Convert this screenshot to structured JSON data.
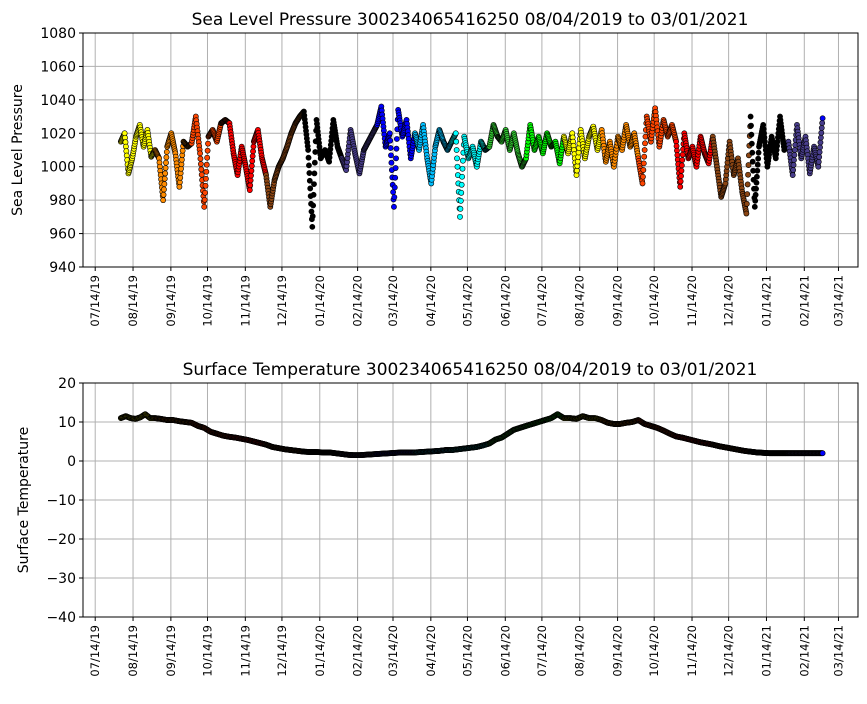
{
  "chart_data": [
    {
      "type": "scatter",
      "title": "Sea Level Pressure 300234065416250  08/04/2019 to 03/01/2021",
      "xlabel": "",
      "ylabel": "Sea Level Pressure",
      "ylim": [
        940,
        1080
      ],
      "yticks": [
        "940",
        "960",
        "980",
        "1000",
        "1020",
        "1040",
        "1060",
        "1080"
      ],
      "xlim": [
        "2019-07-04",
        "2021-03-30"
      ],
      "grid": true,
      "series_key": "slp"
    },
    {
      "type": "scatter",
      "title": "Surface Temperature 300234065416250  08/04/2019 to 03/01/2021",
      "xlabel": "",
      "ylabel": "Surface Temperature",
      "ylim": [
        -40,
        20
      ],
      "yticks": [
        "−40",
        "−30",
        "−20",
        "−10",
        "0",
        "10",
        "20"
      ],
      "xlim": [
        "2019-07-04",
        "2021-03-30"
      ],
      "grid": true,
      "series_key": "temp"
    }
  ],
  "xticks": [
    "07/14/19",
    "08/14/19",
    "09/14/19",
    "10/14/19",
    "11/14/19",
    "12/14/19",
    "01/14/20",
    "02/14/20",
    "03/14/20",
    "04/14/20",
    "05/14/20",
    "06/14/20",
    "07/14/20",
    "08/14/20",
    "09/14/20",
    "10/14/20",
    "11/14/20",
    "12/14/20",
    "01/14/21",
    "02/14/21",
    "03/14/21"
  ],
  "months": [
    {
      "month": "2019-08",
      "start_day": 4,
      "color": "#ffff00",
      "slp": [
        1015,
        1020,
        996,
        1005,
        1018,
        1025,
        1012,
        1022,
        1006
      ],
      "temp": [
        11,
        11.5,
        11,
        10.8,
        11.2,
        12,
        11
      ]
    },
    {
      "month": "2019-09",
      "color": "#ff8c00",
      "slp": [
        1010,
        1005,
        980,
        1012,
        1020,
        1008,
        988,
        1015,
        1012
      ],
      "temp": [
        11,
        10.8,
        10.5,
        10.5,
        10.2,
        10
      ]
    },
    {
      "month": "2019-10",
      "color": "#ff4500",
      "slp": [
        1014,
        1030,
        1008,
        976,
        1018,
        1022,
        1015,
        1026,
        1028
      ],
      "temp": [
        9.8,
        9,
        8.5,
        7.5,
        7,
        6.5
      ]
    },
    {
      "month": "2019-11",
      "color": "#ff0000",
      "slp": [
        1026,
        1008,
        995,
        1012,
        1000,
        986,
        1015,
        1022,
        1005
      ],
      "temp": [
        6.2,
        6,
        5.7,
        5.4,
        5,
        4.6
      ]
    },
    {
      "month": "2019-12",
      "color": "#8b4513",
      "slp": [
        995,
        976,
        992,
        1000,
        1005,
        1012,
        1020,
        1026,
        1030
      ],
      "temp": [
        4.2,
        3.6,
        3.3,
        3,
        2.8,
        2.6
      ]
    },
    {
      "month": "2020-01",
      "color": "#000000",
      "slp": [
        1033,
        1010,
        964,
        1028,
        1005,
        1010,
        1003,
        1028,
        1012
      ],
      "temp": [
        2.4,
        2.3,
        2.3,
        2.2,
        2.2,
        2
      ]
    },
    {
      "month": "2020-02",
      "color": "#483d8b",
      "slp": [
        1005,
        998,
        1022,
        1008,
        996,
        1010,
        1015,
        1020
      ],
      "temp": [
        1.8,
        1.6,
        1.5,
        1.5,
        1.6,
        1.7
      ]
    },
    {
      "month": "2020-03",
      "color": "#0000ff",
      "slp": [
        1025,
        1036,
        1012,
        1020,
        976,
        1034,
        1018,
        1028,
        1005
      ],
      "temp": [
        1.8,
        1.9,
        2,
        2.1,
        2.2,
        2.2
      ]
    },
    {
      "month": "2020-04",
      "color": "#00bfff",
      "slp": [
        1020,
        1010,
        1025,
        1005,
        990,
        1012,
        1022,
        1015,
        1010
      ],
      "temp": [
        2.2,
        2.3,
        2.4,
        2.5,
        2.6,
        2.8
      ]
    },
    {
      "month": "2020-05",
      "color": "#00ffff",
      "slp": [
        1015,
        1020,
        970,
        1018,
        1005,
        1012,
        1000,
        1015,
        1010
      ],
      "temp": [
        2.8,
        3,
        3.2,
        3.4,
        3.6,
        4
      ]
    },
    {
      "month": "2020-06",
      "color": "#32cd32",
      "slp": [
        1012,
        1025,
        1018,
        1015,
        1022,
        1010,
        1020,
        1008,
        1000
      ],
      "temp": [
        4.5,
        5.5,
        6,
        7,
        8,
        8.5
      ]
    },
    {
      "month": "2020-07",
      "color": "#00ff00",
      "slp": [
        1005,
        1025,
        1010,
        1018,
        1008,
        1020,
        1012,
        1015,
        1002
      ],
      "temp": [
        9,
        9.5,
        10,
        10.5,
        11,
        12
      ]
    },
    {
      "month": "2020-08",
      "color": "#ffff00",
      "slp": [
        1018,
        1008,
        1020,
        995,
        1022,
        1005,
        1018,
        1024,
        1010
      ],
      "temp": [
        11,
        11,
        10.8,
        11.5,
        11,
        11
      ]
    },
    {
      "month": "2020-09",
      "color": "#ff8c00",
      "slp": [
        1022,
        1003,
        1015,
        1000,
        1018,
        1010,
        1025,
        1012,
        1020
      ],
      "temp": [
        10.5,
        9.8,
        9.5,
        9.5,
        9.8,
        10
      ]
    },
    {
      "month": "2020-10",
      "color": "#ff4500",
      "slp": [
        1005,
        990,
        1030,
        1015,
        1035,
        1012,
        1028,
        1018,
        1025
      ],
      "temp": [
        10.5,
        9.5,
        9,
        8.5,
        7.8,
        7
      ]
    },
    {
      "month": "2020-11",
      "color": "#ff0000",
      "slp": [
        1015,
        988,
        1020,
        1005,
        1012,
        1000,
        1018,
        1008,
        1002
      ],
      "temp": [
        6.3,
        6,
        5.6,
        5.2,
        4.8,
        4.5
      ]
    },
    {
      "month": "2020-12",
      "color": "#8b4513",
      "slp": [
        1018,
        1000,
        982,
        990,
        1015,
        995,
        1005,
        985,
        972
      ],
      "temp": [
        4.2,
        3.8,
        3.5,
        3.2,
        2.9,
        2.6
      ]
    },
    {
      "month": "2021-01",
      "color": "#000000",
      "slp": [
        1030,
        976,
        1012,
        1025,
        1000,
        1018,
        1005,
        1030,
        1010
      ],
      "temp": [
        2.4,
        2.2,
        2.1,
        2,
        2,
        2
      ]
    },
    {
      "month": "2021-02",
      "color": "#483d8b",
      "slp": [
        1015,
        995,
        1025,
        1005,
        1018,
        996,
        1012,
        1000
      ],
      "temp": [
        2,
        2,
        2,
        2,
        2,
        2
      ]
    },
    {
      "month": "2021-03",
      "color": "#0000ff",
      "slp": [
        1029
      ],
      "temp": [
        2
      ]
    }
  ]
}
